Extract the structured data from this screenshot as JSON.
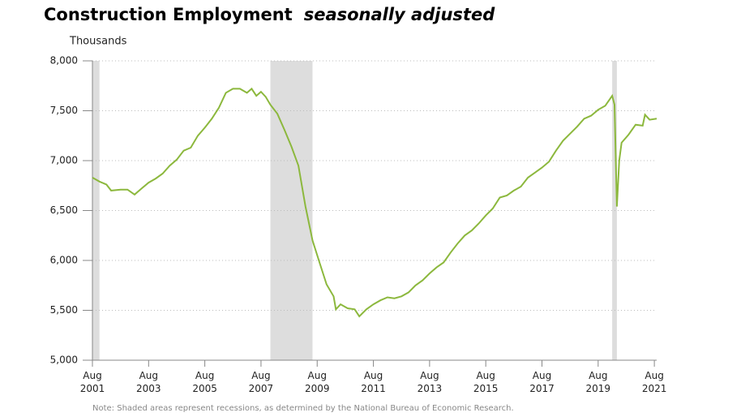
{
  "chart_data": {
    "type": "line",
    "title": "Construction Employment",
    "subtitle": "seasonally adjusted",
    "y_label": "Thousands",
    "note": "Note: Shaded areas represent recessions, as determined by the National Bureau of Economic Research.",
    "x": [
      "2001-08",
      "2001-11",
      "2002-02",
      "2002-04",
      "2002-08",
      "2002-11",
      "2003-02",
      "2003-05",
      "2003-08",
      "2003-11",
      "2004-02",
      "2004-05",
      "2004-08",
      "2004-11",
      "2005-02",
      "2005-05",
      "2005-08",
      "2005-11",
      "2006-02",
      "2006-05",
      "2006-08",
      "2006-11",
      "2007-02",
      "2007-04",
      "2007-06",
      "2007-08",
      "2007-10",
      "2007-12",
      "2008-03",
      "2008-06",
      "2008-09",
      "2008-12",
      "2009-03",
      "2009-06",
      "2009-09",
      "2009-12",
      "2010-03",
      "2010-04",
      "2010-06",
      "2010-09",
      "2010-12",
      "2011-02",
      "2011-05",
      "2011-08",
      "2011-11",
      "2012-02",
      "2012-05",
      "2012-08",
      "2012-11",
      "2013-02",
      "2013-05",
      "2013-08",
      "2013-11",
      "2014-02",
      "2014-05",
      "2014-08",
      "2014-11",
      "2015-02",
      "2015-05",
      "2015-08",
      "2015-11",
      "2016-02",
      "2016-05",
      "2016-08",
      "2016-11",
      "2017-02",
      "2017-05",
      "2017-08",
      "2017-11",
      "2018-02",
      "2018-05",
      "2018-08",
      "2018-11",
      "2019-02",
      "2019-05",
      "2019-08",
      "2019-11",
      "2020-02",
      "2020-03",
      "2020-04",
      "2020-05",
      "2020-06",
      "2020-09",
      "2020-12",
      "2021-03",
      "2021-04",
      "2021-06",
      "2021-09"
    ],
    "series": [
      {
        "name": "Construction employment",
        "color": "#8cb83d",
        "values": [
          6830,
          6790,
          6760,
          6700,
          6710,
          6710,
          6660,
          6720,
          6780,
          6820,
          6870,
          6950,
          7010,
          7100,
          7130,
          7250,
          7330,
          7420,
          7530,
          7680,
          7720,
          7720,
          7680,
          7720,
          7650,
          7690,
          7640,
          7560,
          7470,
          7310,
          7140,
          6950,
          6540,
          6200,
          5980,
          5760,
          5640,
          5510,
          5560,
          5520,
          5510,
          5440,
          5510,
          5560,
          5600,
          5630,
          5620,
          5640,
          5680,
          5750,
          5800,
          5870,
          5930,
          5980,
          6080,
          6170,
          6250,
          6300,
          6370,
          6450,
          6520,
          6630,
          6650,
          6700,
          6740,
          6830,
          6880,
          6930,
          6990,
          7100,
          7200,
          7270,
          7340,
          7420,
          7450,
          7510,
          7550,
          7650,
          7560,
          6540,
          7000,
          7180,
          7260,
          7360,
          7350,
          7460,
          7410,
          7420
        ]
      }
    ],
    "recessions": [
      [
        "2001-08",
        "2001-11"
      ],
      [
        "2007-12",
        "2009-06"
      ],
      [
        "2020-02",
        "2020-04"
      ]
    ],
    "recession_color": "#dddddd",
    "xlim": [
      "2001-08",
      "2021-09"
    ],
    "xticks": [
      {
        "value": "2001-08",
        "label": "Aug 2001"
      },
      {
        "value": "2003-08",
        "label": "Aug 2003"
      },
      {
        "value": "2005-08",
        "label": "Aug 2005"
      },
      {
        "value": "2007-08",
        "label": "Aug 2007"
      },
      {
        "value": "2009-08",
        "label": "Aug 2009"
      },
      {
        "value": "2011-08",
        "label": "Aug 2011"
      },
      {
        "value": "2013-08",
        "label": "Aug 2013"
      },
      {
        "value": "2015-08",
        "label": "Aug 2015"
      },
      {
        "value": "2017-08",
        "label": "Aug 2017"
      },
      {
        "value": "2019-08",
        "label": "Aug 2019"
      },
      {
        "value": "2021-08",
        "label": "Aug 2021"
      }
    ],
    "ylim": [
      5000,
      8000
    ],
    "yticks": [
      {
        "value": 5000,
        "label": "5,000"
      },
      {
        "value": 5500,
        "label": "5,500"
      },
      {
        "value": 6000,
        "label": "6,000"
      },
      {
        "value": 6500,
        "label": "6,500"
      },
      {
        "value": 7000,
        "label": "7,000"
      },
      {
        "value": 7500,
        "label": "7,500"
      },
      {
        "value": 8000,
        "label": "8,000"
      }
    ],
    "grid": true
  }
}
